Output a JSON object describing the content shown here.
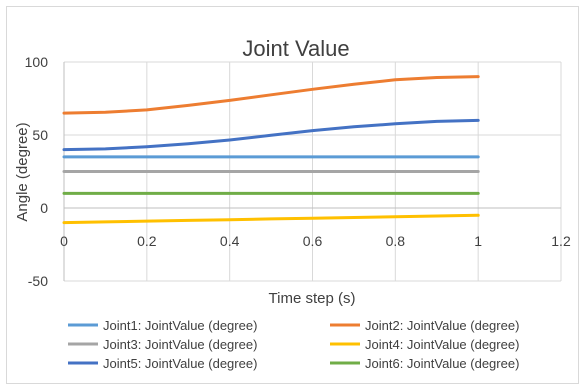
{
  "chart_data": {
    "type": "line",
    "title": "Joint Value",
    "xlabel": "Time step (s)",
    "ylabel": "Angle (degree)",
    "xlim": [
      0,
      1.2
    ],
    "ylim": [
      -50,
      100
    ],
    "x_ticks": [
      "0",
      "0.2",
      "0.4",
      "0.6",
      "0.8",
      "1",
      "1.2"
    ],
    "y_ticks": [
      "-50",
      "0",
      "50",
      "100"
    ],
    "grid": true,
    "legend_position": "bottom",
    "x": [
      0,
      0.1,
      0.2,
      0.3,
      0.4,
      0.5,
      0.6,
      0.7,
      0.8,
      0.9,
      1.0
    ],
    "series": [
      {
        "name": "Joint1: JointValue (degree)",
        "color": "#5b9bd5",
        "values": [
          35,
          35,
          35,
          35,
          35,
          35,
          35,
          35,
          35,
          35,
          35
        ]
      },
      {
        "name": "Joint2: JointValue (degree)",
        "color": "#ed7d31",
        "values": [
          65,
          65.6,
          67.2,
          70.3,
          73.7,
          77.5,
          81.3,
          84.7,
          87.8,
          89.4,
          90
        ]
      },
      {
        "name": "Joint3: JointValue (degree)",
        "color": "#a5a5a5",
        "values": [
          25,
          25,
          25,
          25,
          25,
          25,
          25,
          25,
          25,
          25,
          25
        ]
      },
      {
        "name": "Joint4: JointValue (degree)",
        "color": "#ffc000",
        "values": [
          -10,
          -9.5,
          -9,
          -8.5,
          -8,
          -7.5,
          -7,
          -6.5,
          -6,
          -5.5,
          -5
        ]
      },
      {
        "name": "Joint5: JointValue (degree)",
        "color": "#4472c4",
        "values": [
          40,
          40.5,
          41.9,
          44,
          46.6,
          49.8,
          53,
          55.6,
          57.7,
          59.3,
          60
        ]
      },
      {
        "name": "Joint6: JointValue (degree)",
        "color": "#70ad47",
        "values": [
          10,
          10,
          10,
          10,
          10,
          10,
          10,
          10,
          10,
          10,
          10
        ]
      }
    ]
  }
}
